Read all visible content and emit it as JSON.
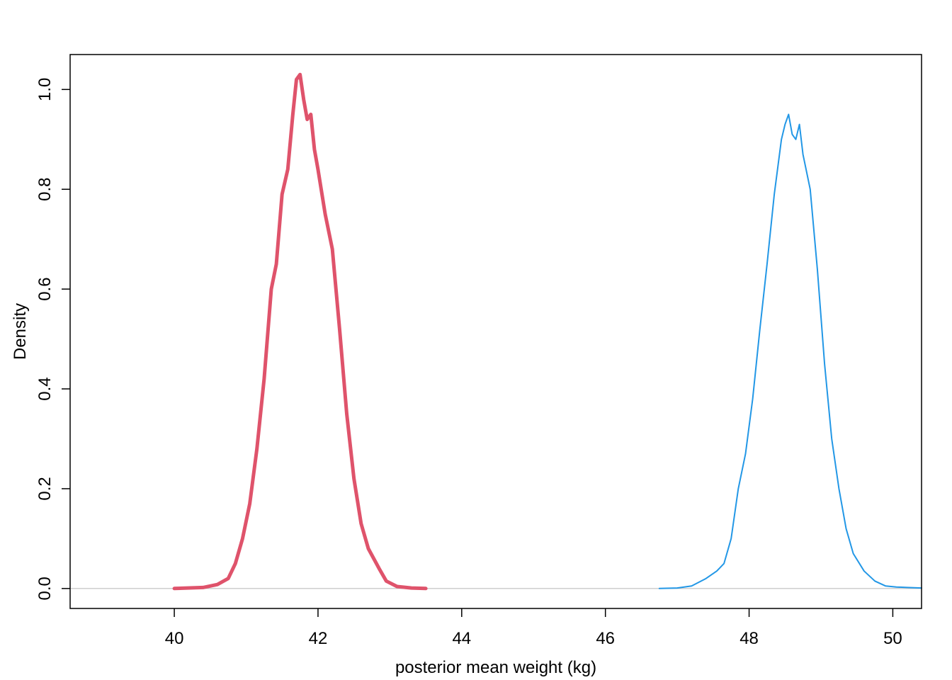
{
  "chart_data": {
    "type": "line",
    "title": "",
    "xlabel": "posterior mean weight (kg)",
    "ylabel": "Density",
    "xlim": [
      38.55,
      50.4
    ],
    "ylim": [
      -0.04,
      1.07
    ],
    "x_ticks": [
      40,
      42,
      44,
      46,
      48,
      50
    ],
    "x_tick_labels": [
      "40",
      "42",
      "44",
      "46",
      "48",
      "50"
    ],
    "y_ticks": [
      0.0,
      0.2,
      0.4,
      0.6,
      0.8,
      1.0
    ],
    "y_tick_labels": [
      "0.0",
      "0.2",
      "0.4",
      "0.6",
      "0.8",
      "1.0"
    ],
    "grid": false,
    "legend": "none",
    "baseline": {
      "y": 0,
      "color": "#bebebe"
    },
    "series": [
      {
        "color": "#df536b",
        "line_width": 5,
        "x": [
          40.0,
          40.4,
          40.6,
          40.75,
          40.85,
          40.95,
          41.05,
          41.15,
          41.25,
          41.35,
          41.42,
          41.5,
          41.58,
          41.65,
          41.7,
          41.75,
          41.8,
          41.85,
          41.9,
          41.95,
          42.0,
          42.1,
          42.2,
          42.3,
          42.4,
          42.5,
          42.6,
          42.7,
          42.85,
          42.95,
          43.1,
          43.3,
          43.5
        ],
        "y": [
          0.0,
          0.002,
          0.008,
          0.02,
          0.05,
          0.1,
          0.17,
          0.28,
          0.42,
          0.6,
          0.65,
          0.79,
          0.84,
          0.95,
          1.02,
          1.03,
          0.98,
          0.94,
          0.95,
          0.88,
          0.84,
          0.75,
          0.68,
          0.52,
          0.35,
          0.22,
          0.13,
          0.08,
          0.04,
          0.015,
          0.004,
          0.001,
          0.0
        ]
      },
      {
        "color": "#2297e6",
        "line_width": 2,
        "x": [
          46.75,
          47.0,
          47.2,
          47.4,
          47.55,
          47.65,
          47.75,
          47.85,
          47.95,
          48.05,
          48.15,
          48.25,
          48.35,
          48.45,
          48.5,
          48.55,
          48.6,
          48.65,
          48.7,
          48.75,
          48.85,
          48.95,
          49.05,
          49.15,
          49.25,
          49.35,
          49.45,
          49.6,
          49.75,
          49.9,
          50.05,
          50.2,
          50.4
        ],
        "y": [
          0.0,
          0.001,
          0.005,
          0.02,
          0.035,
          0.05,
          0.1,
          0.2,
          0.27,
          0.38,
          0.52,
          0.65,
          0.79,
          0.9,
          0.93,
          0.95,
          0.91,
          0.9,
          0.93,
          0.87,
          0.8,
          0.64,
          0.45,
          0.3,
          0.2,
          0.12,
          0.07,
          0.035,
          0.015,
          0.005,
          0.003,
          0.002,
          0.001
        ]
      }
    ]
  }
}
